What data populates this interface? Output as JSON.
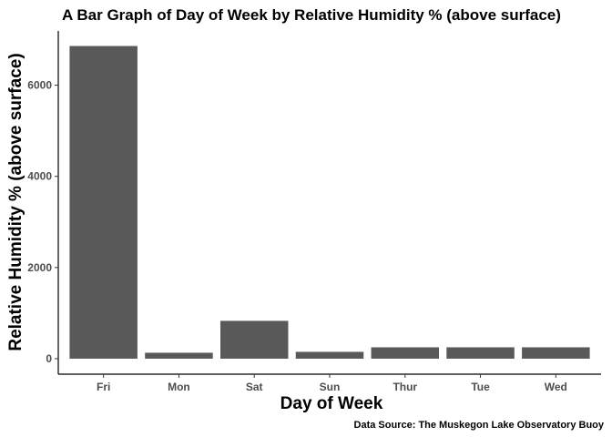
{
  "chart_data": {
    "type": "bar",
    "title": "A Bar Graph of Day of Week by Relative Humidity % (above surface)",
    "xlabel": "Day of Week",
    "ylabel": "Relative Humidity % (above surface)",
    "caption": "Data Source: The Muskegon Lake Observatory Buoy",
    "categories": [
      "Fri",
      "Mon",
      "Sat",
      "Sun",
      "Thur",
      "Tue",
      "Wed"
    ],
    "values": [
      6860,
      130,
      830,
      150,
      250,
      250,
      250
    ],
    "ylim": [
      -340,
      7190
    ],
    "yticks": [
      0,
      2000,
      4000,
      6000
    ],
    "grid": false,
    "bar_color": "#595959"
  }
}
